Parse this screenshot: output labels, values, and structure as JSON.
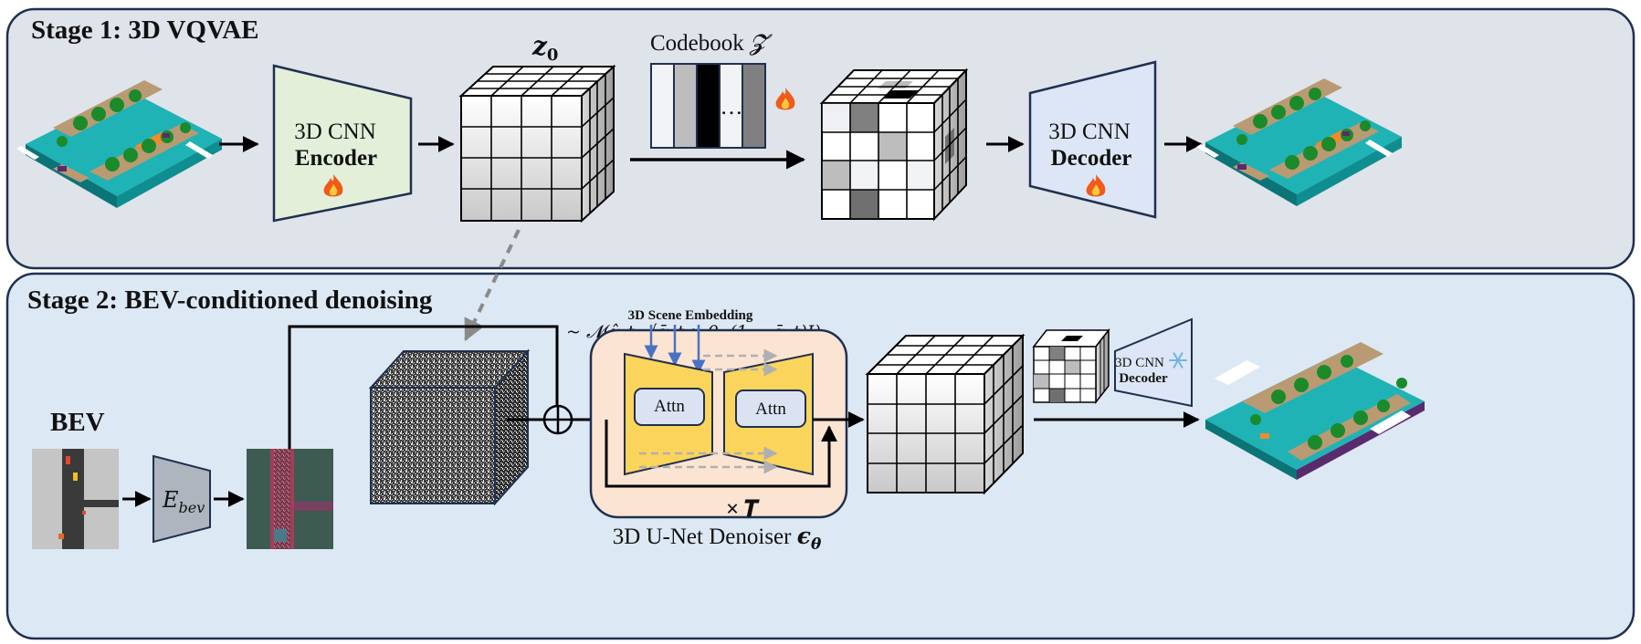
{
  "stage1": {
    "title": "Stage 1: 3D VQVAE",
    "encoder_line1": "3D CNN",
    "encoder_line2": "Encoder",
    "latent_label": "z",
    "latent_subscript": "0",
    "codebook_label": "Codebook",
    "codebook_symbol": "𝓩",
    "codebook_ellipsis": "…",
    "decoder_line1": "3D CNN",
    "decoder_line2": "Decoder",
    "trainable_icon": "fire-icon"
  },
  "stage2": {
    "title": "Stage 2: BEV-conditioned denoising",
    "bev_label": "BEV",
    "bev_encoder_symbol": "E",
    "bev_encoder_subscript": "bev",
    "noise_formula": "~ 𝓝(ẑ_t; √ᾱ_t z_0, (1 − ᾱ_t)I)",
    "scene_embedding_label": "3D Scene Embedding",
    "attn_left": "Attn",
    "attn_right": "Attn",
    "repeat_label": "× 𝑻",
    "unet_label": "3D U-Net Denoiser",
    "unet_symbol": "ϵ",
    "unet_subscript": "θ",
    "small_decoder_line1": "3D CNN",
    "small_decoder_line2": "Decoder",
    "frozen_icon": "snowflake-icon",
    "sum_icon": "circled-plus-icon"
  },
  "colors": {
    "stage1_bg": "#dfe3ea",
    "stage2_bg": "#dde8f5",
    "border": "#1f3050",
    "encoder_fill": "#e3efd9",
    "decoder_fill": "#dde6f6",
    "bev_encoder_fill": "#aeb5bf",
    "unet_fill": "#fbe4d2",
    "unet_trapezoid": "#fbd45b",
    "attn_fill": "#dbe3f3",
    "embedding_arrow": "#4a72c4",
    "skip_arrow": "#b0b0b0",
    "fire": "#f05a1a",
    "snowflake": "#6fb4e6"
  }
}
